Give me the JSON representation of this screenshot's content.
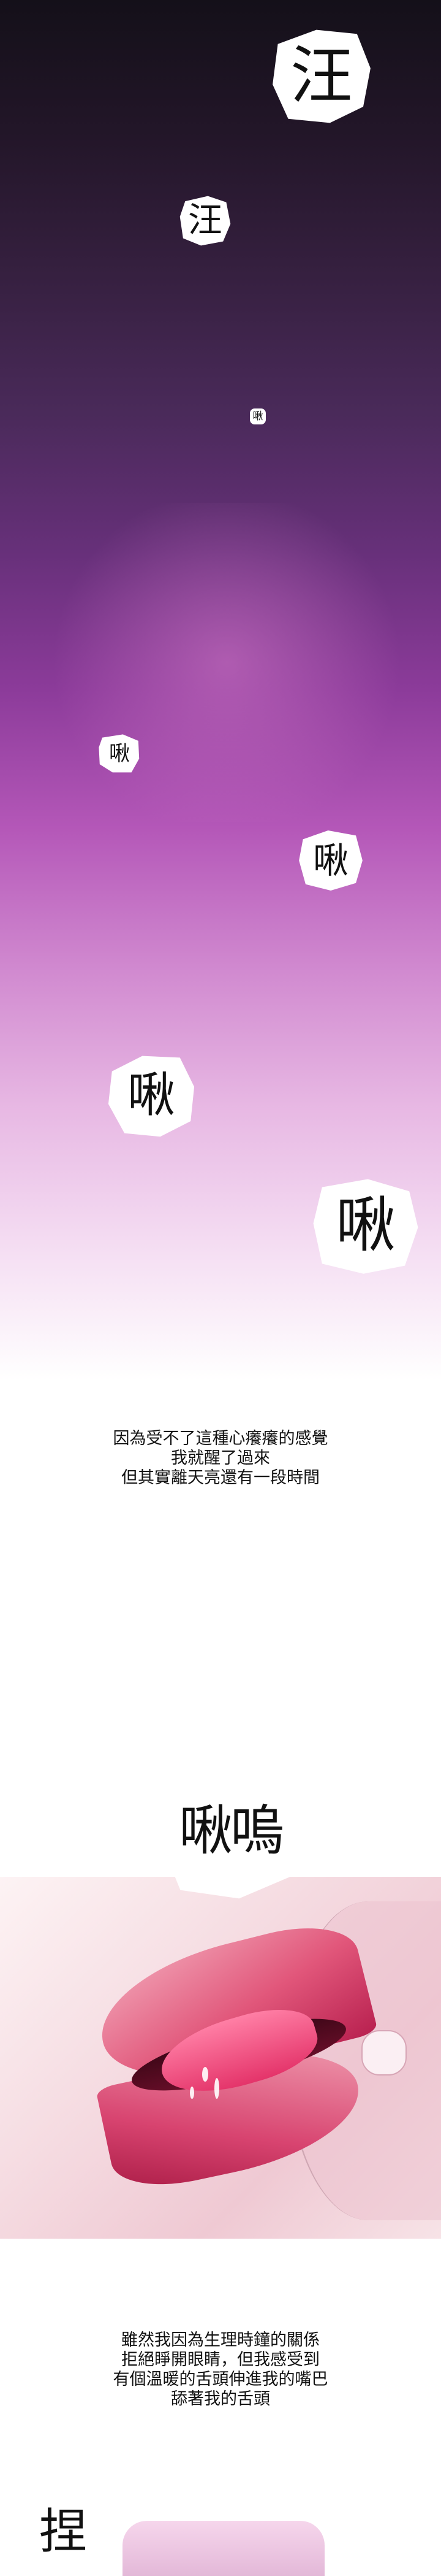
{
  "sfx": {
    "s1": "汪",
    "s2": "汪",
    "s3": "啾",
    "s4": "啾",
    "s5": "啾",
    "s6": "啾",
    "s7": "啾",
    "s8": "啾嗚",
    "s9": "捏"
  },
  "captions": {
    "c1": [
      "因為受不了這種心癢癢的感覺",
      "我就醒了過來",
      "但其實離天亮還有一段時間"
    ],
    "c2": [
      "雖然我因為生理時鐘的關係",
      "拒絕睜開眼睛，但我感受到",
      "有個溫暖的舌頭伸進我的嘴巴",
      "舔著我的舌頭"
    ]
  }
}
